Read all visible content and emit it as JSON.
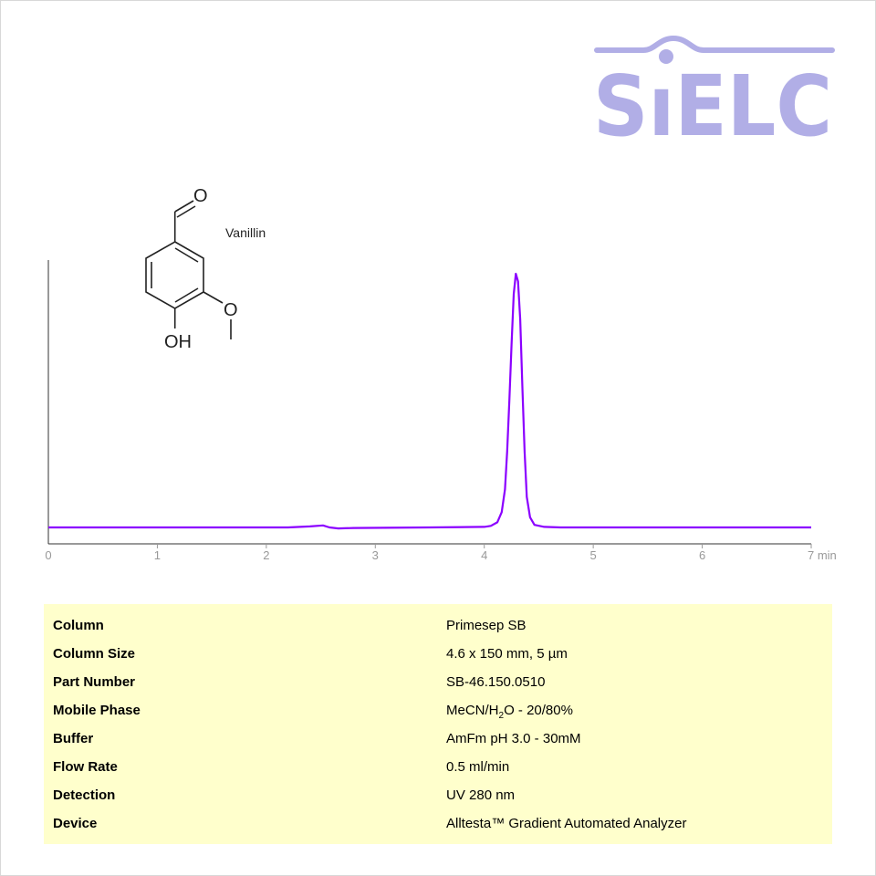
{
  "logo": {
    "text": "SIELC",
    "color": "#b1aee6"
  },
  "compound": {
    "name": "Vanillin",
    "atoms": [
      "O",
      "O",
      "OH"
    ]
  },
  "chart_data": {
    "type": "line",
    "xlabel": "min",
    "xlim": [
      0,
      7
    ],
    "x_ticks": [
      "0",
      "1",
      "2",
      "3",
      "4",
      "5",
      "6",
      "7"
    ],
    "ylabel": "",
    "y_units": "relative (unlabeled)",
    "ylim": [
      -0.06,
      1.05
    ],
    "grid": false,
    "line_color": "#8b00ff",
    "series": [
      {
        "points": [
          [
            0,
            0
          ],
          [
            2.2,
            0
          ],
          [
            2.4,
            0.004
          ],
          [
            2.52,
            0.008
          ],
          [
            2.58,
            0.0
          ],
          [
            2.66,
            -0.004
          ],
          [
            2.8,
            -0.002
          ],
          [
            3.5,
            0.0
          ],
          [
            4.0,
            0.002
          ],
          [
            4.06,
            0.006
          ],
          [
            4.12,
            0.02
          ],
          [
            4.16,
            0.06
          ],
          [
            4.19,
            0.15
          ],
          [
            4.21,
            0.3
          ],
          [
            4.23,
            0.5
          ],
          [
            4.25,
            0.72
          ],
          [
            4.27,
            0.92
          ],
          [
            4.29,
            1.0
          ],
          [
            4.31,
            0.97
          ],
          [
            4.33,
            0.82
          ],
          [
            4.35,
            0.55
          ],
          [
            4.37,
            0.3
          ],
          [
            4.39,
            0.12
          ],
          [
            4.42,
            0.04
          ],
          [
            4.46,
            0.01
          ],
          [
            4.55,
            0.002
          ],
          [
            4.7,
            0
          ],
          [
            7,
            0
          ]
        ]
      }
    ]
  },
  "conditions": [
    {
      "label": "Column",
      "value": "Primesep SB"
    },
    {
      "label": "Column Size",
      "value": "4.6 x 150 mm, 5 µm"
    },
    {
      "label": "Part Number",
      "value": "SB-46.150.0510"
    },
    {
      "label": "Mobile Phase",
      "value_parts": [
        "MeCN/H",
        "2",
        "O - 20/80%"
      ]
    },
    {
      "label": "Buffer",
      "value": "AmFm pH 3.0 - 30mM"
    },
    {
      "label": "Flow Rate",
      "value": "0.5 ml/min"
    },
    {
      "label": "Detection",
      "value": "UV 280 nm"
    },
    {
      "label": "Device",
      "value": "Alltesta™ Gradient Automated Analyzer"
    }
  ]
}
